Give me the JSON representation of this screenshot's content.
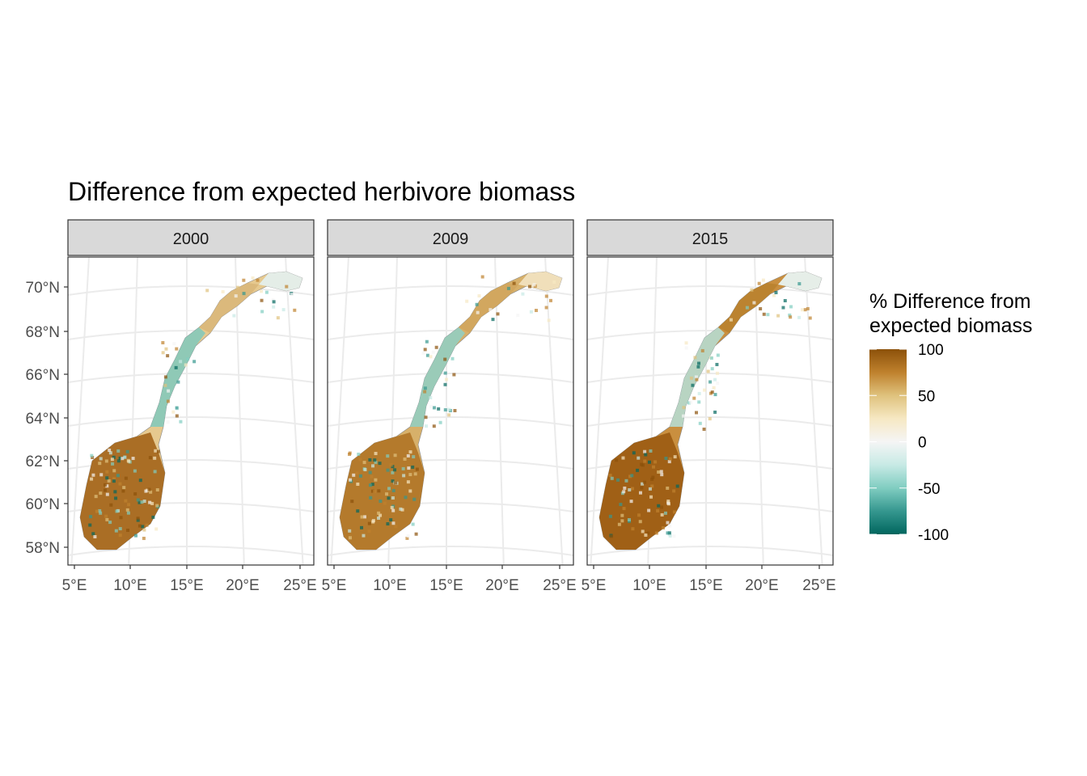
{
  "title": "Difference from expected herbivore biomass",
  "panels": [
    {
      "label": "2000"
    },
    {
      "label": "2009"
    },
    {
      "label": "2015"
    }
  ],
  "legend": {
    "title_line1": "% Difference from",
    "title_line2": "expected biomass",
    "ticks": [
      "100",
      "50",
      "0",
      "-50",
      "-100"
    ],
    "colors": [
      "#8c510a",
      "#bf812d",
      "#dfc27d",
      "#f6e8c3",
      "#f5f5f5",
      "#c7eae5",
      "#80cdc1",
      "#35978f",
      "#01665e"
    ]
  },
  "axes": {
    "lat_labels": [
      "70°N",
      "68°N",
      "66°N",
      "64°N",
      "62°N",
      "60°N",
      "58°N"
    ],
    "lon_labels": [
      "5°E",
      "10°E",
      "15°E",
      "20°E",
      "25°E"
    ]
  },
  "panel_style": {
    "2000": {
      "coast": "#e6c98f",
      "south": "#a3641a",
      "mid": "#7fc9bd",
      "north": "#d9b77a",
      "east": "#e4efec"
    },
    "2009": {
      "coast": "#d7b06a",
      "south": "#b07426",
      "mid": "#8fd0c6",
      "north": "#d2a65e",
      "east": "#f1e2bf"
    },
    "2015": {
      "coast": "#c98f3f",
      "south": "#9b5b12",
      "mid": "#b5e0d9",
      "north": "#b9822f",
      "east": "#e8f3f1"
    }
  }
}
